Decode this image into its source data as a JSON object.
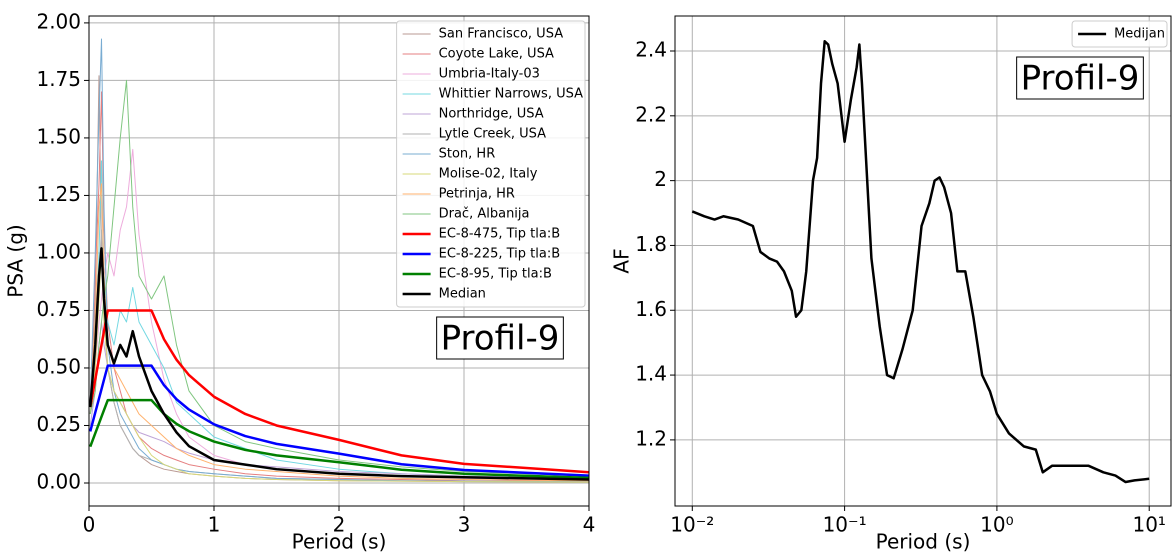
{
  "chart_data": [
    {
      "type": "line",
      "xlabel": "Period (s)",
      "ylabel": "PSA (g)",
      "xlim": [
        0,
        4
      ],
      "ylim": [
        -0.1,
        2.03
      ],
      "xticks": [
        0,
        1,
        2,
        3,
        4
      ],
      "yticks": [
        {
          "value": 0,
          "label": "0.00"
        },
        0.25,
        {
          "value": 0.5,
          "label": "0.50"
        },
        0.75,
        {
          "value": 1,
          "label": "1.00"
        },
        1.25,
        {
          "value": 1.5,
          "label": "1.50"
        },
        1.75,
        {
          "value": 2,
          "label": "2.00"
        }
      ],
      "grid": true,
      "legend": "upper right",
      "annotation": "Profil-9",
      "x": [
        0.01,
        0.05,
        0.08,
        0.1,
        0.12,
        0.15,
        0.2,
        0.25,
        0.3,
        0.35,
        0.4,
        0.5,
        0.6,
        0.7,
        0.8,
        1.0,
        1.25,
        1.5,
        2.0,
        2.5,
        3.0,
        4.0
      ],
      "series": [
        {
          "name": "San Francisco, USA",
          "color": "#ba9a93",
          "linewidth": 1,
          "values": [
            0.3,
            0.8,
            1.77,
            1.0,
            0.7,
            0.5,
            0.35,
            0.25,
            0.2,
            0.15,
            0.12,
            0.08,
            0.06,
            0.05,
            0.04,
            0.03,
            0.02,
            0.015,
            0.01,
            0.008,
            0.006,
            0.004
          ]
        },
        {
          "name": "Coyote Lake, USA",
          "color": "#e57f80",
          "linewidth": 1,
          "values": [
            0.35,
            0.9,
            1.3,
            1.7,
            1.1,
            0.7,
            0.5,
            0.4,
            0.3,
            0.25,
            0.2,
            0.15,
            0.12,
            0.1,
            0.08,
            0.06,
            0.04,
            0.03,
            0.02,
            0.015,
            0.01,
            0.008
          ]
        },
        {
          "name": "Umbria-Italy-03",
          "color": "#eeaddd",
          "linewidth": 1,
          "values": [
            0.3,
            0.5,
            0.7,
            0.8,
            0.9,
            1.0,
            0.9,
            1.1,
            1.2,
            1.45,
            1.08,
            0.7,
            0.45,
            0.3,
            0.2,
            0.12,
            0.08,
            0.06,
            0.04,
            0.03,
            0.02,
            0.015
          ]
        },
        {
          "name": "Whittier Narrows, USA",
          "color": "#74d8e2",
          "linewidth": 1,
          "values": [
            0.3,
            0.6,
            1.0,
            1.4,
            0.9,
            0.7,
            0.6,
            0.75,
            0.7,
            0.85,
            0.7,
            0.6,
            0.5,
            0.35,
            0.3,
            0.2,
            0.15,
            0.1,
            0.06,
            0.04,
            0.03,
            0.02
          ]
        },
        {
          "name": "Northridge, USA",
          "color": "#bfa4d7",
          "linewidth": 1,
          "values": [
            0.25,
            0.4,
            0.6,
            0.7,
            0.6,
            0.5,
            0.4,
            0.35,
            0.3,
            0.25,
            0.22,
            0.2,
            0.18,
            0.15,
            0.13,
            0.1,
            0.08,
            0.07,
            0.05,
            0.04,
            0.03,
            0.02
          ]
        },
        {
          "name": "Lytle Creek, USA",
          "color": "#b2b2b2",
          "linewidth": 1,
          "values": [
            0.3,
            0.6,
            0.9,
            1.1,
            0.8,
            0.5,
            0.35,
            0.25,
            0.2,
            0.15,
            0.12,
            0.1,
            0.08,
            0.06,
            0.05,
            0.04,
            0.03,
            0.02,
            0.015,
            0.01,
            0.008,
            0.006
          ]
        },
        {
          "name": "Ston, HR",
          "color": "#79acd2",
          "linewidth": 1,
          "values": [
            0.35,
            1.0,
            1.6,
            1.93,
            1.2,
            0.6,
            0.4,
            0.3,
            0.25,
            0.2,
            0.15,
            0.1,
            0.08,
            0.06,
            0.05,
            0.04,
            0.03,
            0.02,
            0.015,
            0.01,
            0.008,
            0.005
          ]
        },
        {
          "name": "Molise-02, Italy",
          "color": "#d7d87a",
          "linewidth": 1,
          "values": [
            0.3,
            0.5,
            0.8,
            1.0,
            0.7,
            0.5,
            0.4,
            0.35,
            0.3,
            0.25,
            0.2,
            0.12,
            0.08,
            0.06,
            0.04,
            0.03,
            0.02,
            0.015,
            0.01,
            0.008,
            0.006,
            0.004
          ]
        },
        {
          "name": "Petrinja, HR",
          "color": "#ffb26e",
          "linewidth": 1,
          "values": [
            0.35,
            0.7,
            1.2,
            1.3,
            0.9,
            0.6,
            0.5,
            0.45,
            0.4,
            0.35,
            0.3,
            0.25,
            0.2,
            0.15,
            0.12,
            0.08,
            0.06,
            0.05,
            0.03,
            0.02,
            0.015,
            0.01
          ]
        },
        {
          "name": "Drač, Albanija",
          "color": "#80c680",
          "linewidth": 1,
          "values": [
            0.3,
            0.4,
            0.6,
            0.7,
            0.8,
            0.9,
            1.2,
            1.5,
            1.75,
            1.2,
            0.9,
            0.8,
            0.9,
            0.6,
            0.4,
            0.25,
            0.18,
            0.15,
            0.1,
            0.07,
            0.05,
            0.03
          ]
        },
        {
          "name": "EC-8-475, Tip tla:B",
          "color": "#ff0000",
          "linewidth": 2.5,
          "values": [
            0.33,
            0.45,
            0.54,
            0.6,
            0.66,
            0.75,
            0.75,
            0.75,
            0.75,
            0.75,
            0.75,
            0.75,
            0.625,
            0.536,
            0.469,
            0.375,
            0.3,
            0.25,
            0.1875,
            0.12,
            0.0833,
            0.0469
          ]
        },
        {
          "name": "EC-8-225, Tip tla:B",
          "color": "#0000ff",
          "linewidth": 2.5,
          "values": [
            0.224,
            0.306,
            0.367,
            0.408,
            0.449,
            0.51,
            0.51,
            0.51,
            0.51,
            0.51,
            0.51,
            0.51,
            0.425,
            0.364,
            0.319,
            0.255,
            0.204,
            0.17,
            0.1275,
            0.0816,
            0.0567,
            0.0319
          ]
        },
        {
          "name": "EC-8-95, Tip tla:B",
          "color": "#008000",
          "linewidth": 2.5,
          "values": [
            0.158,
            0.216,
            0.259,
            0.288,
            0.317,
            0.36,
            0.36,
            0.36,
            0.36,
            0.36,
            0.36,
            0.36,
            0.3,
            0.257,
            0.225,
            0.18,
            0.144,
            0.12,
            0.09,
            0.0576,
            0.04,
            0.0225
          ]
        },
        {
          "name": "Median",
          "color": "#000000",
          "linewidth": 2.5,
          "values": [
            0.33,
            0.6,
            0.9,
            1.02,
            0.8,
            0.6,
            0.52,
            0.6,
            0.55,
            0.66,
            0.55,
            0.4,
            0.3,
            0.22,
            0.16,
            0.1,
            0.08,
            0.06,
            0.04,
            0.03,
            0.025,
            0.015
          ]
        }
      ]
    },
    {
      "type": "line",
      "xlabel": "Period (s)",
      "ylabel": "AF",
      "xlog": true,
      "xlim": [
        0.0077,
        13.9
      ],
      "ylim": [
        0.996,
        2.508
      ],
      "xticks": [
        {
          "value": 0.01,
          "label": "10⁻²"
        },
        {
          "value": 0.1,
          "label": "10⁻¹"
        },
        {
          "value": 1,
          "label": "10⁰"
        },
        {
          "value": 10,
          "label": "10¹"
        }
      ],
      "yticks": [
        1.2,
        1.4,
        1.6,
        1.8,
        2.0,
        2.2,
        2.4
      ],
      "grid": true,
      "legend": "upper right",
      "annotation": "Profil-9",
      "x": [
        0.01,
        0.012,
        0.014,
        0.016,
        0.02,
        0.025,
        0.028,
        0.032,
        0.036,
        0.04,
        0.045,
        0.048,
        0.052,
        0.056,
        0.062,
        0.066,
        0.07,
        0.074,
        0.078,
        0.083,
        0.09,
        0.1,
        0.11,
        0.12,
        0.125,
        0.13,
        0.15,
        0.17,
        0.19,
        0.21,
        0.24,
        0.28,
        0.32,
        0.36,
        0.39,
        0.42,
        0.45,
        0.5,
        0.55,
        0.62,
        0.7,
        0.8,
        0.9,
        1.0,
        1.2,
        1.5,
        1.8,
        2.0,
        2.3,
        3.0,
        4.0,
        5.0,
        6.0,
        7.0,
        8.0,
        10.0
      ],
      "series": [
        {
          "name": "Medijan",
          "color": "#000000",
          "linewidth": 2.5,
          "values": [
            1.905,
            1.89,
            1.88,
            1.89,
            1.88,
            1.86,
            1.78,
            1.76,
            1.75,
            1.72,
            1.66,
            1.58,
            1.6,
            1.72,
            2.0,
            2.07,
            2.3,
            2.43,
            2.42,
            2.36,
            2.3,
            2.12,
            2.25,
            2.35,
            2.42,
            2.3,
            1.76,
            1.55,
            1.4,
            1.39,
            1.48,
            1.6,
            1.86,
            1.93,
            2.0,
            2.01,
            1.98,
            1.9,
            1.72,
            1.72,
            1.58,
            1.4,
            1.35,
            1.28,
            1.22,
            1.18,
            1.17,
            1.1,
            1.12,
            1.12,
            1.12,
            1.1,
            1.09,
            1.07,
            1.075,
            1.08
          ]
        }
      ]
    }
  ]
}
